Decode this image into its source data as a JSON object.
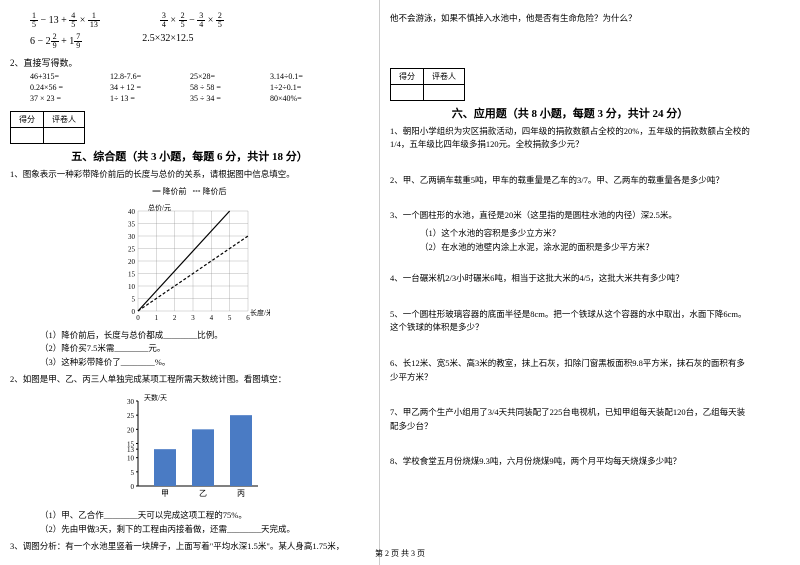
{
  "left": {
    "math": {
      "expr1_html": "<span class='frac'><span class='n'>1</span><span class='d'>5</span></span> − 13 + <span class='frac'><span class='n'>4</span><span class='d'>5</span></span> × <span class='frac'><span class='n'>1</span><span class='d'>13</span></span>",
      "expr2_html": "<span class='frac'><span class='n'>3</span><span class='d'>4</span></span> × <span class='frac'><span class='n'>2</span><span class='d'>5</span></span> − <span class='frac'><span class='n'>3</span><span class='d'>4</span></span> × <span class='frac'><span class='n'>2</span><span class='d'>5</span></span>",
      "expr3_html": "6 − 2<span class='frac'><span class='n'>2</span><span class='d'>9</span></span> + 1<span class='frac'><span class='n'>7</span><span class='d'>9</span></span>",
      "expr4": "2.5×32×12.5"
    },
    "q2_title": "2、直接写得数。",
    "arith": [
      [
        "46+315=",
        "12.8-7.6=",
        "25×28=",
        "3.14÷0.1="
      ],
      [
        "0.24×56 =",
        "34 + 12 =",
        "58 ÷ 58 =",
        "1÷2÷0.1="
      ],
      [
        "37 × 23 =",
        "1÷ 13 =",
        "35 ÷ 34 =",
        "80×40%="
      ]
    ],
    "score_labels": [
      "得分",
      "评卷人"
    ],
    "section5_title": "五、综合题（共 3 小题，每题 6 分，共计 18 分）",
    "q5_1": "1、图象表示一种彩带降价前后的长度与总价的关系，请根据图中信息填空。",
    "chart1": {
      "legend1": "━ 降价前",
      "legend2": "┅ 降价后",
      "ylabel": "总价/元",
      "xlabel": "长度/米",
      "ticks_y": [
        40,
        35,
        30,
        25,
        20,
        15,
        10,
        5,
        0
      ],
      "ticks_x": [
        0,
        1,
        2,
        3,
        4,
        5,
        6
      ],
      "grid_color": "#888",
      "line1_color": "#000",
      "line2_color": "#000"
    },
    "q5_1_subs": [
      "（1）降价前后，长度与总价都成________比例。",
      "（2）降价买7.5米需________元。",
      "（3）这种彩带降价了________%。"
    ],
    "q5_2": "2、如图是甲、乙、丙三人单独完成某项工程所需天数统计图。看图填空：",
    "chart2": {
      "ylabel": "天数/天",
      "ticks_y": [
        30,
        25,
        20,
        15,
        13,
        10,
        5,
        0
      ],
      "categories": [
        "甲",
        "乙",
        "丙"
      ],
      "values": [
        13,
        20,
        25
      ],
      "bar_color": "#4a7bc4",
      "ymax": 30
    },
    "q5_2_subs": [
      "（1）甲、乙合作________天可以完成这项工程的75%。",
      "（2）先由甲做3天，剩下的工程由丙接着做，还需________天完成。"
    ],
    "q5_3": "3、调图分析：有一个水池里竖着一块牌子，上面写着\"平均水深1.5米\"。某人身高1.75米，"
  },
  "right": {
    "q5_3_cont": "他不会游泳，如果不慎掉入水池中，他是否有生命危险？为什么？",
    "score_labels": [
      "得分",
      "评卷人"
    ],
    "section6_title": "六、应用题（共 8 小题，每题 3 分，共计 24 分）",
    "apps": [
      "1、朝阳小学组织为灾区捐款活动，四年级的捐款数额占全校的20%，五年级的捐款数额占全校的1/4，五年级比四年级多捐120元。全校捐款多少元？",
      "2、甲、乙两辆车载重5吨，甲车的载重量是乙车的3/7。甲、乙两车的载重量各是多少吨？",
      "3、一个圆柱形的水池，直径是20米（这里指的是圆柱水池的内径）深2.5米。",
      "4、一台碾米机2/3小时碾米6吨，相当于这批大米的4/5，这批大米共有多少吨？",
      "5、一个圆柱形玻璃容器的底面半径是8cm。把一个铁球从这个容器的水中取出，水面下降6cm。这个铁球的体积是多少？",
      "6、长12米、宽5米、高3米的教室，抹上石灰，扣除门窗黑板面积9.8平方米，抹石灰的面积有多少平方米？",
      "7、甲乙两个生产小组用了3/4天共同装配了225台电视机，已知甲组每天装配120台，乙组每天装配多少台？",
      "8、学校食堂五月份烧煤9.3吨，六月份烧煤9吨，两个月平均每天烧煤多少吨？"
    ],
    "q3_subs": [
      "（1）这个水池的容积是多少立方米？",
      "（2）在水池的池壁内涂上水泥，涂水泥的面积是多少平方米？"
    ]
  },
  "footer": "第 2 页 共 3 页"
}
